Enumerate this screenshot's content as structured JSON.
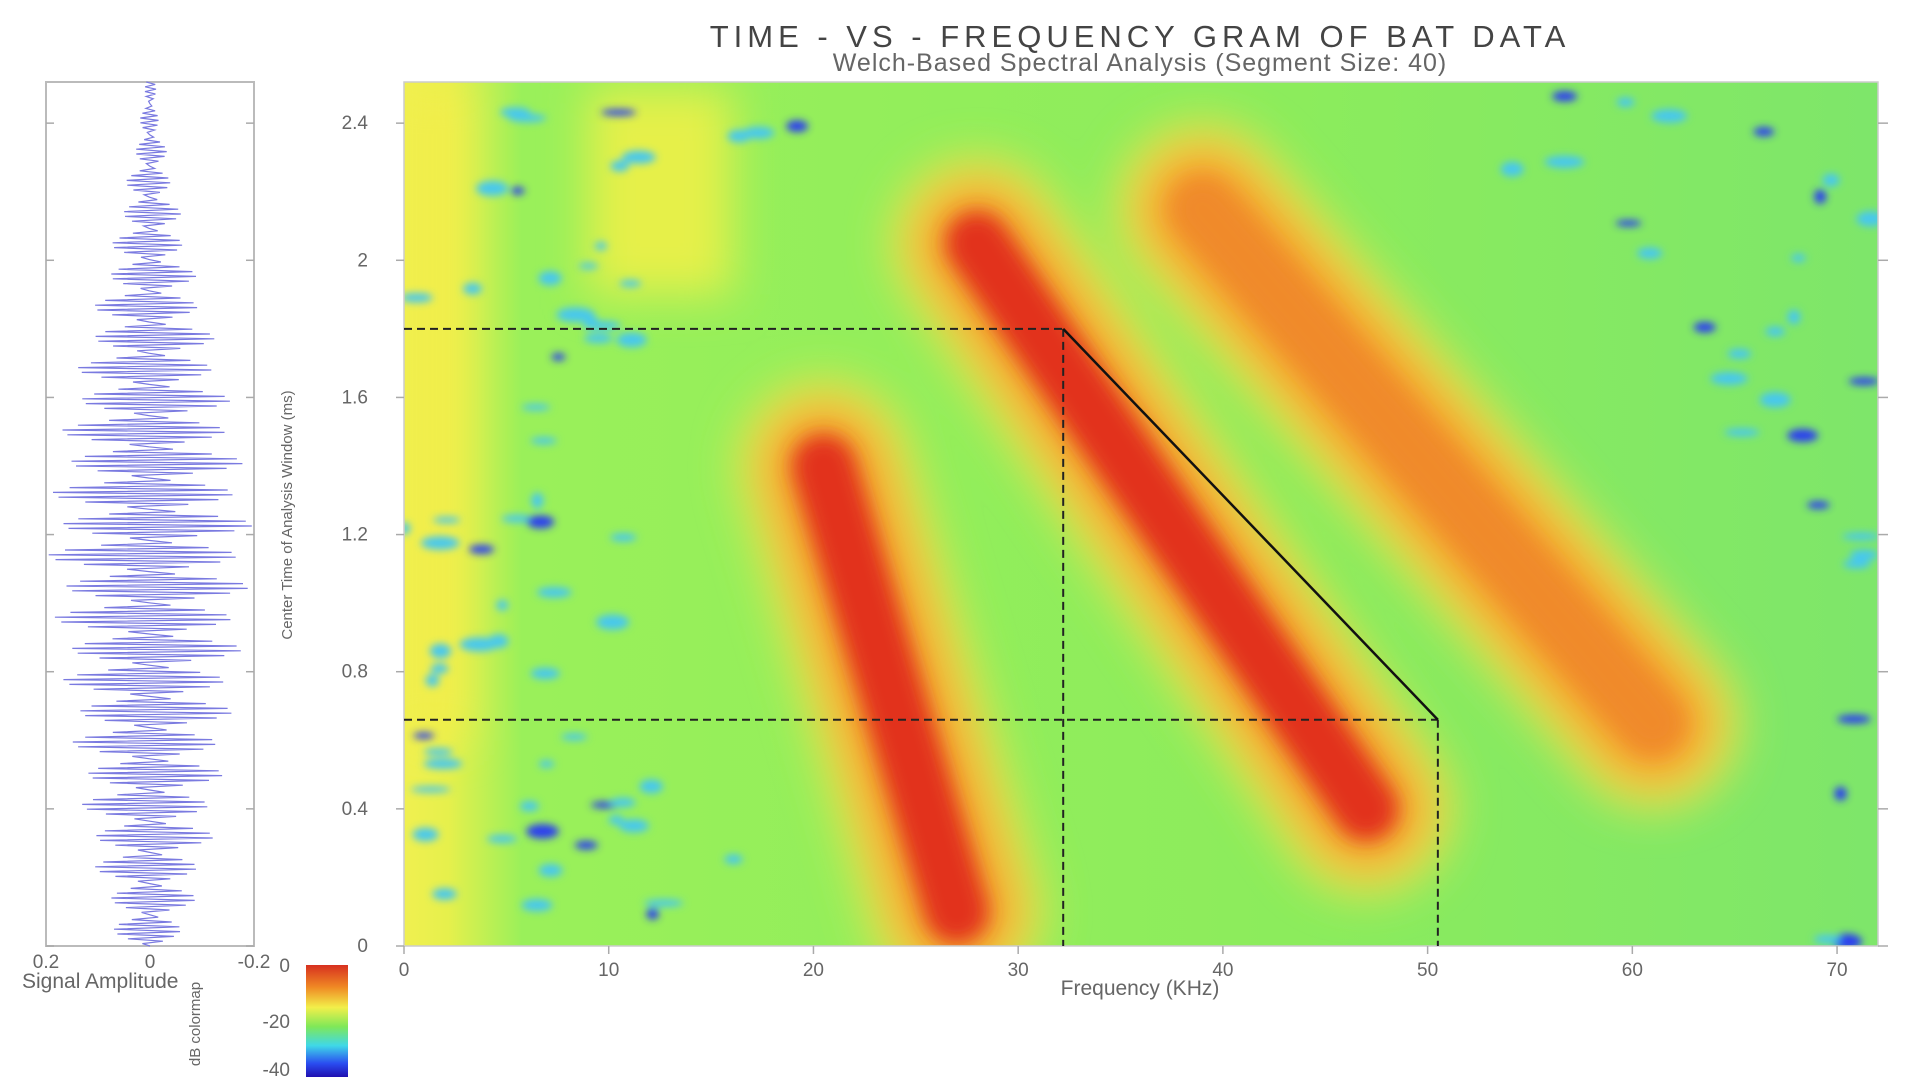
{
  "chart_data": [
    {
      "type": "heatmap",
      "title": "TIME - VS - FREQUENCY GRAM OF BAT DATA",
      "subtitle": "Welch-Based Spectral Analysis (Segment Size: 40)",
      "xlabel": "Frequency (KHz)",
      "ylabel": "Center Time of Analysis Window (ms)",
      "xlim": [
        0,
        72
      ],
      "ylim": [
        0,
        2.52
      ],
      "x_ticks": [
        "0",
        "10",
        "20",
        "30",
        "40",
        "50",
        "60",
        "70"
      ],
      "y_ticks": [
        "0",
        "0.4",
        "0.8",
        "1.2",
        "1.6",
        "2",
        "2.4"
      ],
      "colorbar": {
        "label": "dB colormap",
        "ticks": [
          "0",
          "-20",
          "-40"
        ],
        "range": [
          -40,
          0
        ]
      },
      "ridges": [
        {
          "name": "",
          "points": [
            [
              27,
              0.1
            ],
            [
              20.5,
              1.4
            ]
          ],
          "peak_db": -2
        },
        {
          "name": "",
          "points": [
            [
              47,
              0.4
            ],
            [
              28,
              2.05
            ]
          ],
          "peak_db": -1
        },
        {
          "name": "",
          "points": [
            [
              61,
              0.65
            ],
            [
              39,
              2.15
            ]
          ],
          "peak_db": -8
        }
      ],
      "annotations": {
        "dashed_horizontal_y": [
          1.8,
          0.66
        ],
        "dashed_vertical_x": [
          32.2,
          50.5
        ],
        "solid_line": [
          [
            32.2,
            1.8
          ],
          [
            50.5,
            0.66
          ]
        ]
      },
      "grid": false,
      "legend": "none"
    },
    {
      "type": "line",
      "xlabel": "Signal Amplitude",
      "x_ticks": [
        "0.2",
        "0",
        "-0.2"
      ],
      "xlim": [
        0.2,
        -0.2
      ],
      "description_series": "time-domain waveform plotted vertically",
      "amplitude_envelope": [
        [
          0.0,
          0.06
        ],
        [
          0.1,
          0.08
        ],
        [
          0.3,
          0.12
        ],
        [
          0.6,
          0.15
        ],
        [
          0.9,
          0.18
        ],
        [
          1.2,
          0.2
        ],
        [
          1.5,
          0.17
        ],
        [
          1.8,
          0.12
        ],
        [
          2.0,
          0.08
        ],
        [
          2.2,
          0.05
        ],
        [
          2.4,
          0.02
        ],
        [
          2.52,
          0.01
        ]
      ]
    }
  ]
}
